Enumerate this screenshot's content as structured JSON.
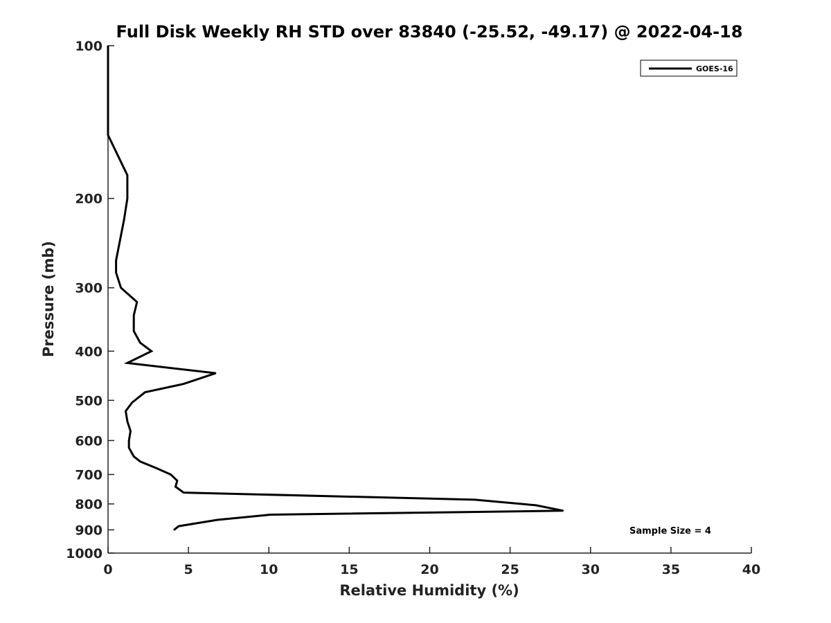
{
  "chart_data": {
    "type": "line",
    "title": "Full Disk Weekly RH STD over 83840 (-25.52, -49.17) @ 2022-04-18",
    "xlabel": "Relative Humidity (%)",
    "ylabel": "Pressure (mb)",
    "xlim": [
      0,
      40
    ],
    "ylim": [
      1000,
      100
    ],
    "yscale": "log",
    "x_ticks": [
      "0",
      "5",
      "10",
      "15",
      "20",
      "25",
      "30",
      "35",
      "40"
    ],
    "y_ticks": [
      "100",
      "200",
      "300",
      "400",
      "500",
      "600",
      "700",
      "800",
      "900",
      "1000"
    ],
    "grid": false,
    "legend_position": "top-right",
    "annotation": "Sample Size = 4",
    "series": [
      {
        "name": "GOES-16",
        "color": "#000000",
        "points": [
          {
            "rh": 0.0,
            "p": 100
          },
          {
            "rh": 0.0,
            "p": 150
          },
          {
            "rh": 1.2,
            "p": 180
          },
          {
            "rh": 1.2,
            "p": 200
          },
          {
            "rh": 1.0,
            "p": 220
          },
          {
            "rh": 0.5,
            "p": 265
          },
          {
            "rh": 0.5,
            "p": 280
          },
          {
            "rh": 0.8,
            "p": 300
          },
          {
            "rh": 1.8,
            "p": 320
          },
          {
            "rh": 1.6,
            "p": 340
          },
          {
            "rh": 1.6,
            "p": 365
          },
          {
            "rh": 2.0,
            "p": 385
          },
          {
            "rh": 2.7,
            "p": 400
          },
          {
            "rh": 1.2,
            "p": 422
          },
          {
            "rh": 6.7,
            "p": 442
          },
          {
            "rh": 4.7,
            "p": 464
          },
          {
            "rh": 2.3,
            "p": 482
          },
          {
            "rh": 1.5,
            "p": 505
          },
          {
            "rh": 1.1,
            "p": 525
          },
          {
            "rh": 1.2,
            "p": 550
          },
          {
            "rh": 1.4,
            "p": 575
          },
          {
            "rh": 1.3,
            "p": 600
          },
          {
            "rh": 1.3,
            "p": 620
          },
          {
            "rh": 1.6,
            "p": 645
          },
          {
            "rh": 2.0,
            "p": 660
          },
          {
            "rh": 3.0,
            "p": 680
          },
          {
            "rh": 3.9,
            "p": 700
          },
          {
            "rh": 4.3,
            "p": 720
          },
          {
            "rh": 4.2,
            "p": 740
          },
          {
            "rh": 4.7,
            "p": 760
          },
          {
            "rh": 22.8,
            "p": 785
          },
          {
            "rh": 26.6,
            "p": 805
          },
          {
            "rh": 28.3,
            "p": 825
          },
          {
            "rh": 10.1,
            "p": 840
          },
          {
            "rh": 6.8,
            "p": 860
          },
          {
            "rh": 4.4,
            "p": 885
          },
          {
            "rh": 4.1,
            "p": 900
          }
        ]
      }
    ]
  }
}
